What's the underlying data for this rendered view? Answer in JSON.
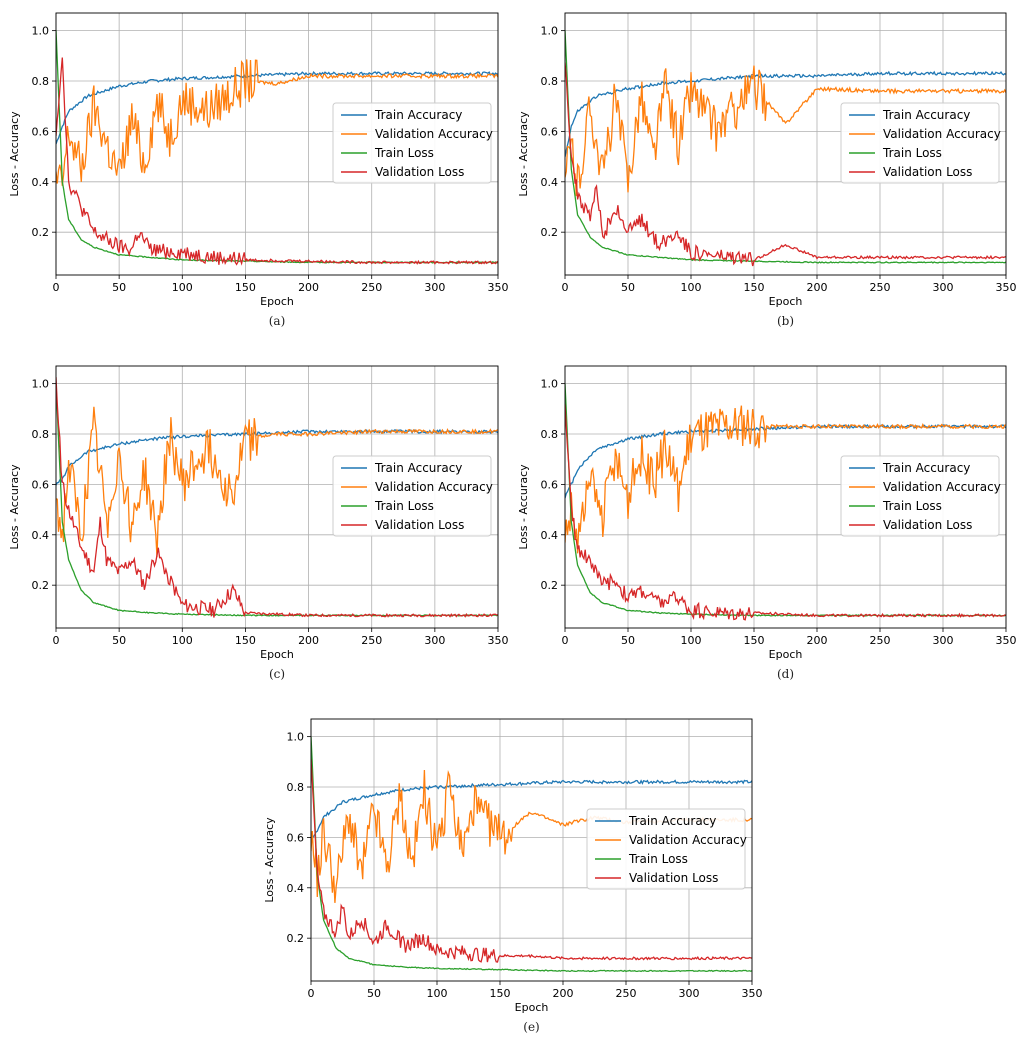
{
  "figure": {
    "legend_labels": [
      "Train Accuracy",
      "Validation Accuracy",
      "Train Loss",
      "Validation Loss"
    ],
    "colors": [
      "#1f77b4",
      "#ff7f0e",
      "#2ca02c",
      "#d62728"
    ],
    "xlabel": "Epoch",
    "ylabel": "Loss - Accuracy"
  },
  "chart_data": [
    {
      "type": "line",
      "caption": "(a)",
      "xlabel": "Epoch",
      "ylabel": "Loss - Accuracy",
      "xlim": [
        0,
        350
      ],
      "ylim": [
        0.03,
        1.07
      ],
      "xticks": [
        0,
        50,
        100,
        150,
        200,
        250,
        300,
        350
      ],
      "yticks": [
        0.2,
        0.4,
        0.6,
        0.8,
        1.0
      ],
      "grid": true,
      "legend": "center-right",
      "series": [
        {
          "name": "Train Accuracy",
          "color": "#1f77b4",
          "x": [
            0,
            5,
            10,
            25,
            50,
            75,
            100,
            150,
            200,
            250,
            300,
            350
          ],
          "values": [
            0.55,
            0.62,
            0.68,
            0.74,
            0.78,
            0.8,
            0.81,
            0.82,
            0.83,
            0.83,
            0.83,
            0.83
          ]
        },
        {
          "name": "Validation Accuracy",
          "color": "#ff7f0e",
          "x": [
            0,
            5,
            10,
            20,
            30,
            40,
            50,
            60,
            70,
            80,
            90,
            100,
            120,
            150,
            175,
            200,
            250,
            300,
            350
          ],
          "values": [
            0.4,
            0.39,
            0.6,
            0.45,
            0.7,
            0.55,
            0.42,
            0.65,
            0.47,
            0.72,
            0.58,
            0.73,
            0.68,
            0.8,
            0.79,
            0.82,
            0.82,
            0.82,
            0.82
          ]
        },
        {
          "name": "Train Loss",
          "color": "#2ca02c",
          "x": [
            0,
            5,
            10,
            20,
            30,
            50,
            75,
            100,
            150,
            200,
            250,
            300,
            350
          ],
          "values": [
            1.0,
            0.4,
            0.25,
            0.17,
            0.14,
            0.11,
            0.1,
            0.09,
            0.085,
            0.08,
            0.08,
            0.08,
            0.08
          ]
        },
        {
          "name": "Validation Loss",
          "color": "#d62728",
          "x": [
            0,
            5,
            10,
            20,
            30,
            40,
            50,
            60,
            65,
            75,
            100,
            125,
            150,
            200,
            250,
            300,
            350
          ],
          "values": [
            0.6,
            0.9,
            0.4,
            0.3,
            0.2,
            0.17,
            0.14,
            0.13,
            0.2,
            0.13,
            0.12,
            0.1,
            0.09,
            0.085,
            0.08,
            0.08,
            0.08
          ]
        }
      ]
    },
    {
      "type": "line",
      "caption": "(b)",
      "xlabel": "Epoch",
      "ylabel": "Loss - Accuracy",
      "xlim": [
        0,
        350
      ],
      "ylim": [
        0.03,
        1.07
      ],
      "xticks": [
        0,
        50,
        100,
        150,
        200,
        250,
        300,
        350
      ],
      "yticks": [
        0.2,
        0.4,
        0.6,
        0.8,
        1.0
      ],
      "grid": true,
      "legend": "center-right",
      "series": [
        {
          "name": "Train Accuracy",
          "color": "#1f77b4",
          "x": [
            0,
            5,
            10,
            25,
            50,
            75,
            100,
            150,
            200,
            250,
            300,
            350
          ],
          "values": [
            0.5,
            0.62,
            0.68,
            0.74,
            0.77,
            0.79,
            0.8,
            0.82,
            0.82,
            0.83,
            0.83,
            0.83
          ]
        },
        {
          "name": "Validation Accuracy",
          "color": "#ff7f0e",
          "x": [
            0,
            5,
            10,
            20,
            30,
            40,
            50,
            60,
            70,
            80,
            90,
            100,
            120,
            150,
            175,
            200,
            250,
            300,
            350
          ],
          "values": [
            0.4,
            0.55,
            0.38,
            0.7,
            0.42,
            0.73,
            0.4,
            0.75,
            0.5,
            0.78,
            0.55,
            0.77,
            0.6,
            0.78,
            0.63,
            0.77,
            0.76,
            0.76,
            0.76
          ]
        },
        {
          "name": "Train Loss",
          "color": "#2ca02c",
          "x": [
            0,
            5,
            10,
            20,
            30,
            50,
            75,
            100,
            150,
            200,
            250,
            300,
            350
          ],
          "values": [
            1.0,
            0.45,
            0.27,
            0.18,
            0.14,
            0.11,
            0.1,
            0.09,
            0.085,
            0.08,
            0.08,
            0.08,
            0.08
          ]
        },
        {
          "name": "Validation Loss",
          "color": "#d62728",
          "x": [
            0,
            5,
            10,
            20,
            25,
            30,
            40,
            50,
            60,
            75,
            90,
            100,
            125,
            150,
            175,
            200,
            250,
            300,
            350
          ],
          "values": [
            0.9,
            0.5,
            0.35,
            0.25,
            0.38,
            0.18,
            0.3,
            0.2,
            0.25,
            0.15,
            0.2,
            0.12,
            0.1,
            0.09,
            0.15,
            0.1,
            0.1,
            0.1,
            0.1
          ]
        }
      ]
    },
    {
      "type": "line",
      "caption": "(c)",
      "xlabel": "Epoch",
      "ylabel": "Loss - Accuracy",
      "xlim": [
        0,
        350
      ],
      "ylim": [
        0.03,
        1.07
      ],
      "xticks": [
        0,
        50,
        100,
        150,
        200,
        250,
        300,
        350
      ],
      "yticks": [
        0.2,
        0.4,
        0.6,
        0.8,
        1.0
      ],
      "grid": true,
      "legend": "center-right",
      "series": [
        {
          "name": "Train Accuracy",
          "color": "#1f77b4",
          "x": [
            0,
            5,
            10,
            25,
            50,
            75,
            100,
            150,
            200,
            250,
            300,
            350
          ],
          "values": [
            0.6,
            0.62,
            0.67,
            0.73,
            0.76,
            0.78,
            0.79,
            0.8,
            0.81,
            0.81,
            0.81,
            0.81
          ]
        },
        {
          "name": "Validation Accuracy",
          "color": "#ff7f0e",
          "x": [
            0,
            5,
            10,
            20,
            30,
            40,
            50,
            60,
            70,
            80,
            90,
            100,
            120,
            140,
            150,
            175,
            200,
            250,
            300,
            350
          ],
          "values": [
            0.55,
            0.38,
            0.68,
            0.4,
            0.82,
            0.45,
            0.72,
            0.43,
            0.65,
            0.38,
            0.8,
            0.6,
            0.75,
            0.55,
            0.78,
            0.8,
            0.8,
            0.81,
            0.81,
            0.81
          ]
        },
        {
          "name": "Train Loss",
          "color": "#2ca02c",
          "x": [
            0,
            5,
            10,
            20,
            30,
            50,
            75,
            100,
            150,
            200,
            250,
            300,
            350
          ],
          "values": [
            1.0,
            0.45,
            0.3,
            0.18,
            0.13,
            0.1,
            0.09,
            0.085,
            0.08,
            0.08,
            0.08,
            0.08,
            0.08
          ]
        },
        {
          "name": "Validation Loss",
          "color": "#d62728",
          "x": [
            0,
            5,
            10,
            20,
            30,
            35,
            40,
            50,
            60,
            70,
            80,
            100,
            125,
            140,
            150,
            200,
            250,
            300,
            350
          ],
          "values": [
            1.0,
            0.6,
            0.5,
            0.35,
            0.25,
            0.45,
            0.3,
            0.25,
            0.3,
            0.2,
            0.33,
            0.12,
            0.1,
            0.18,
            0.09,
            0.08,
            0.08,
            0.08,
            0.08
          ]
        }
      ]
    },
    {
      "type": "line",
      "caption": "(d)",
      "xlabel": "Epoch",
      "ylabel": "Loss - Accuracy",
      "xlim": [
        0,
        350
      ],
      "ylim": [
        0.03,
        1.07
      ],
      "xticks": [
        0,
        50,
        100,
        150,
        200,
        250,
        300,
        350
      ],
      "yticks": [
        0.2,
        0.4,
        0.6,
        0.8,
        1.0
      ],
      "grid": true,
      "legend": "center-right",
      "series": [
        {
          "name": "Train Accuracy",
          "color": "#1f77b4",
          "x": [
            0,
            5,
            10,
            25,
            50,
            75,
            100,
            150,
            200,
            250,
            300,
            350
          ],
          "values": [
            0.55,
            0.6,
            0.66,
            0.74,
            0.78,
            0.8,
            0.81,
            0.82,
            0.83,
            0.83,
            0.83,
            0.83
          ]
        },
        {
          "name": "Validation Accuracy",
          "color": "#ff7f0e",
          "x": [
            0,
            5,
            10,
            20,
            30,
            40,
            50,
            60,
            70,
            80,
            90,
            100,
            120,
            150,
            200,
            250,
            300,
            350
          ],
          "values": [
            0.4,
            0.5,
            0.38,
            0.6,
            0.48,
            0.7,
            0.55,
            0.72,
            0.6,
            0.75,
            0.58,
            0.8,
            0.82,
            0.83,
            0.83,
            0.83,
            0.83,
            0.83
          ]
        },
        {
          "name": "Train Loss",
          "color": "#2ca02c",
          "x": [
            0,
            5,
            10,
            20,
            30,
            50,
            75,
            100,
            150,
            200,
            250,
            300,
            350
          ],
          "values": [
            1.0,
            0.45,
            0.28,
            0.17,
            0.13,
            0.1,
            0.09,
            0.085,
            0.08,
            0.08,
            0.08,
            0.08,
            0.08
          ]
        },
        {
          "name": "Validation Loss",
          "color": "#d62728",
          "x": [
            0,
            5,
            10,
            20,
            30,
            40,
            50,
            60,
            75,
            90,
            100,
            125,
            150,
            200,
            250,
            300,
            350
          ],
          "values": [
            0.9,
            0.5,
            0.35,
            0.3,
            0.2,
            0.22,
            0.15,
            0.18,
            0.13,
            0.15,
            0.1,
            0.09,
            0.09,
            0.08,
            0.08,
            0.08,
            0.08
          ]
        }
      ]
    },
    {
      "type": "line",
      "caption": "(e)",
      "xlabel": "Epoch",
      "ylabel": "Loss - Accuracy",
      "xlim": [
        0,
        350
      ],
      "ylim": [
        0.03,
        1.07
      ],
      "xticks": [
        0,
        50,
        100,
        150,
        200,
        250,
        300,
        350
      ],
      "yticks": [
        0.2,
        0.4,
        0.6,
        0.8,
        1.0
      ],
      "grid": true,
      "legend": "center-right",
      "series": [
        {
          "name": "Train Accuracy",
          "color": "#1f77b4",
          "x": [
            0,
            5,
            10,
            25,
            50,
            75,
            100,
            150,
            200,
            250,
            300,
            350
          ],
          "values": [
            0.58,
            0.63,
            0.68,
            0.74,
            0.77,
            0.79,
            0.8,
            0.81,
            0.82,
            0.82,
            0.82,
            0.82
          ]
        },
        {
          "name": "Validation Accuracy",
          "color": "#ff7f0e",
          "x": [
            0,
            5,
            10,
            20,
            30,
            40,
            50,
            60,
            70,
            80,
            90,
            100,
            110,
            120,
            130,
            150,
            175,
            200,
            225,
            250,
            300,
            350
          ],
          "values": [
            0.6,
            0.45,
            0.62,
            0.4,
            0.7,
            0.45,
            0.72,
            0.48,
            0.75,
            0.5,
            0.78,
            0.52,
            0.8,
            0.55,
            0.72,
            0.6,
            0.7,
            0.65,
            0.68,
            0.66,
            0.67,
            0.67
          ]
        },
        {
          "name": "Train Loss",
          "color": "#2ca02c",
          "x": [
            0,
            5,
            10,
            20,
            30,
            50,
            75,
            100,
            150,
            200,
            250,
            300,
            350
          ],
          "values": [
            1.0,
            0.45,
            0.27,
            0.16,
            0.12,
            0.095,
            0.085,
            0.08,
            0.075,
            0.07,
            0.07,
            0.07,
            0.07
          ]
        },
        {
          "name": "Validation Loss",
          "color": "#d62728",
          "x": [
            0,
            5,
            10,
            20,
            25,
            30,
            40,
            50,
            60,
            75,
            90,
            100,
            125,
            150,
            175,
            200,
            250,
            300,
            350
          ],
          "values": [
            0.9,
            0.45,
            0.3,
            0.22,
            0.33,
            0.2,
            0.28,
            0.18,
            0.25,
            0.17,
            0.2,
            0.15,
            0.14,
            0.13,
            0.13,
            0.12,
            0.12,
            0.12,
            0.12
          ]
        }
      ]
    }
  ]
}
